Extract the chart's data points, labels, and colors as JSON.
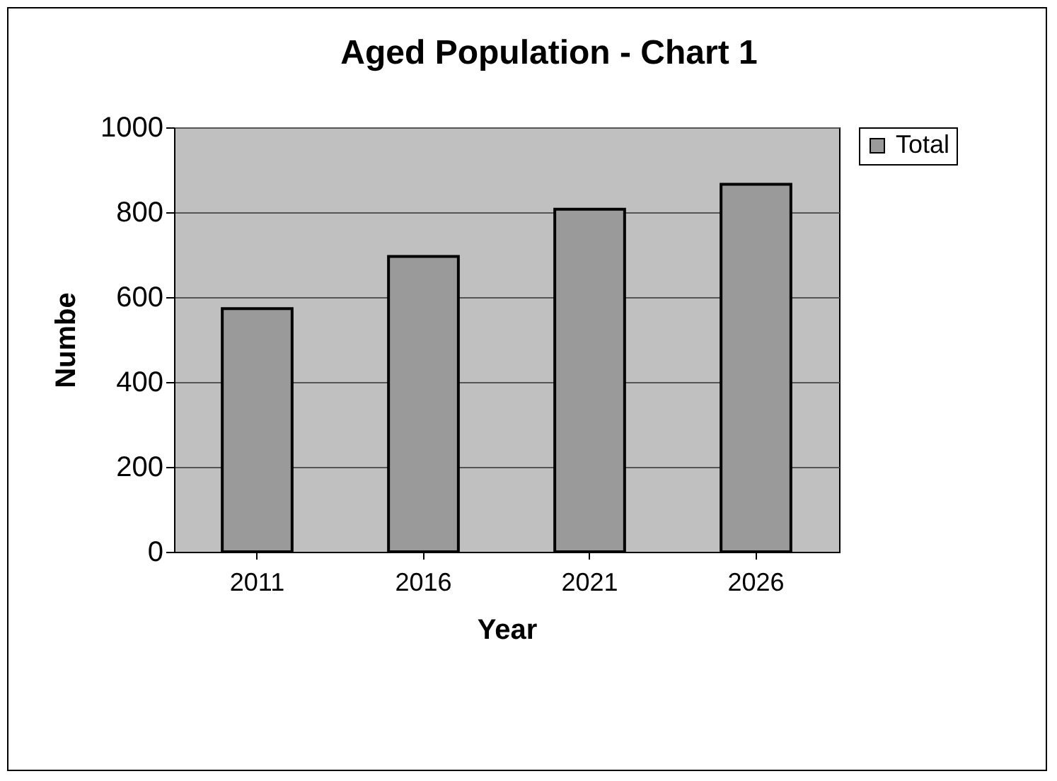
{
  "chart_data": {
    "type": "bar",
    "title": "Aged Population - Chart 1",
    "xlabel": "Year",
    "ylabel": "Numbe",
    "categories": [
      "2011",
      "2016",
      "2021",
      "2026"
    ],
    "series": [
      {
        "name": "Total",
        "color": "#9a9a9a",
        "values": [
          573,
          696,
          807,
          866
        ]
      }
    ],
    "ylim": [
      0,
      1000
    ],
    "yticks": [
      0,
      200,
      400,
      600,
      800,
      1000
    ],
    "grid": "y",
    "legend": "right"
  }
}
